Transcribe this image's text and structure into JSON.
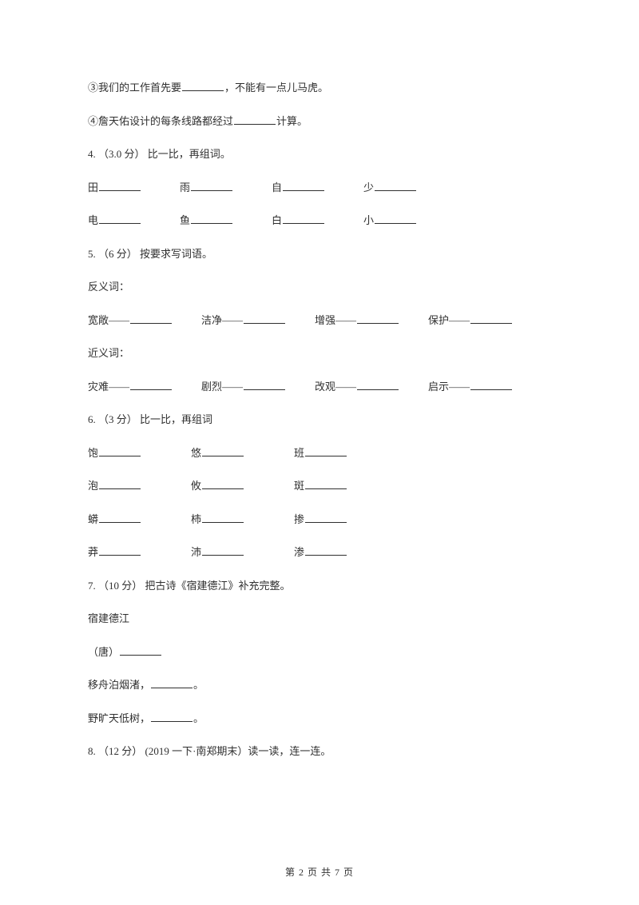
{
  "q3_line1": {
    "prefix": "③我们的工作首先要",
    "suffix": "，不能有一点儿马虎。",
    "blank_w": 52
  },
  "q3_line2": {
    "prefix": "④詹天佑设计的每条线路都经过",
    "suffix": "计算。",
    "blank_w": 52
  },
  "q4": {
    "heading": "4. （3.0 分） 比一比，再组词。",
    "row1": [
      "田",
      "雨",
      "自",
      "少"
    ],
    "row2": [
      "电",
      "鱼",
      "白",
      "小"
    ],
    "blank_w": 52,
    "gap": 48
  },
  "q5": {
    "heading": "5. （6 分） 按要求写词语。",
    "sub1": "反义词：",
    "row1": [
      "宽敞——",
      "洁净——",
      "增强——",
      "保护——"
    ],
    "sub2": "近义词：",
    "row2": [
      "灾难——",
      "剧烈——",
      "改观——",
      "启示——"
    ],
    "blank_w": 52,
    "gap": 36
  },
  "q6": {
    "heading": "6. （3 分） 比一比，再组词",
    "rows": [
      [
        "饱",
        "悠",
        "班"
      ],
      [
        "泡",
        "攸",
        "斑"
      ],
      [
        "蟒",
        "柿",
        "掺"
      ],
      [
        "莽",
        "沛",
        "渗"
      ]
    ],
    "blank_w": 52,
    "gap": 62
  },
  "q7": {
    "heading": "7. （10 分） 把古诗《宿建德江》补充完整。",
    "title": "宿建德江",
    "dynasty": "（唐）",
    "blank_w": 52,
    "l1a": "移舟泊烟渚，",
    "l1_blank_w": 52,
    "l1b": "。",
    "l2a": "野旷天低树，",
    "l2_blank_w": 52,
    "l2b": "。"
  },
  "q8": {
    "heading": "8. （12 分） (2019 一下·南郑期末）读一读，连一连。"
  },
  "footer": "第 2 页 共 7 页",
  "colors": {
    "text": "#303030",
    "bg": "#ffffff",
    "line": "#303030"
  },
  "fontsize_body": 13,
  "fontsize_footer": 12
}
